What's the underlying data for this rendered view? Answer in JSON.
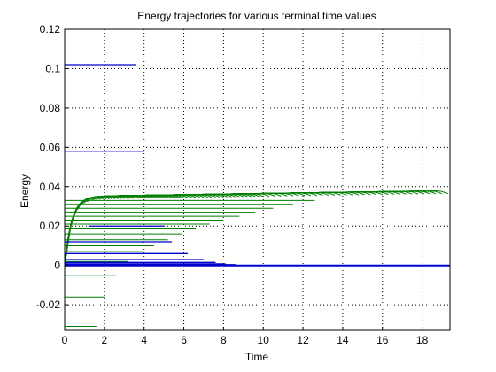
{
  "chart_data": {
    "type": "line",
    "title": "Energy trajectories for various terminal time values",
    "xlabel": "Time",
    "ylabel": "Energy",
    "xlim": [
      0,
      19.4
    ],
    "ylim": [
      -0.033,
      0.12
    ],
    "xticks": [
      0,
      2,
      4,
      6,
      8,
      10,
      12,
      14,
      16,
      18
    ],
    "yticks": [
      -0.02,
      0,
      0.02,
      0.04,
      0.06,
      0.08,
      0.1,
      0.12
    ],
    "ytick_labels": [
      "-0.02",
      "0",
      "0.02",
      "0.04",
      "0.06",
      "0.08",
      "0.1",
      "0.12"
    ],
    "grid": "dotted",
    "legend": "none",
    "colors": {
      "green": "#007f00",
      "blue": "#0000cc"
    },
    "series": [
      {
        "kind": "trajectories",
        "color": "green",
        "terminal_times_T": [
          0.3,
          0.45,
          0.6,
          0.75,
          0.9,
          1.05,
          1.2,
          1.35,
          1.5,
          1.65,
          1.8,
          1.95,
          2.1,
          2.25,
          2.4,
          2.55,
          2.7,
          2.85,
          3.0,
          3.15,
          3.3,
          3.45,
          3.6,
          3.75,
          3.9,
          4.05,
          4.2,
          4.35,
          4.5,
          4.65,
          4.8,
          4.95,
          5.1,
          5.25,
          5.4,
          5.55,
          5.7,
          5.85,
          6.0,
          6.2,
          6.4,
          6.6,
          6.8,
          7.0,
          7.2,
          7.4,
          7.6,
          7.8,
          8.0,
          8.2,
          8.4,
          8.6,
          8.8,
          9.0,
          9.2,
          9.4,
          9.6,
          9.8,
          10.0,
          10.3,
          10.6,
          10.9,
          11.2,
          11.5,
          11.8,
          12.1,
          12.4,
          12.7,
          13.0,
          13.3,
          13.6,
          13.9,
          14.2,
          14.5,
          14.8,
          15.1,
          15.4,
          15.7,
          16.0,
          16.3,
          16.6,
          16.9,
          17.2,
          17.5,
          17.8,
          18.1,
          18.4,
          18.7,
          19.0,
          19.3
        ],
        "rise_time": 1.0,
        "plateau_start": 0.035,
        "plateau_end": 0.038,
        "end_drop": 0.0015
      },
      {
        "kind": "flat_segments",
        "color": "green",
        "segments": [
          {
            "y": -0.031,
            "x0": 0,
            "x1": 1.6
          },
          {
            "y": -0.016,
            "x0": 0,
            "x1": 2.0
          },
          {
            "y": -0.005,
            "x0": 0,
            "x1": 2.6
          },
          {
            "y": 0.002,
            "x0": 0,
            "x1": 3.2
          },
          {
            "y": 0.007,
            "x0": 0,
            "x1": 3.9
          },
          {
            "y": 0.01,
            "x0": 0,
            "x1": 4.5
          },
          {
            "y": 0.013,
            "x0": 0,
            "x1": 5.2
          },
          {
            "y": 0.016,
            "x0": 0,
            "x1": 5.9
          },
          {
            "y": 0.019,
            "x0": 0,
            "x1": 6.6
          },
          {
            "y": 0.021,
            "x0": 0,
            "x1": 7.3
          },
          {
            "y": 0.023,
            "x0": 0,
            "x1": 8.0
          },
          {
            "y": 0.025,
            "x0": 0,
            "x1": 8.8
          },
          {
            "y": 0.027,
            "x0": 0,
            "x1": 9.6
          },
          {
            "y": 0.029,
            "x0": 0,
            "x1": 10.5
          },
          {
            "y": 0.031,
            "x0": 0,
            "x1": 11.5
          },
          {
            "y": 0.033,
            "x0": 0,
            "x1": 12.6
          }
        ]
      },
      {
        "kind": "flat_segments",
        "color": "blue",
        "segments": [
          {
            "y": 0.102,
            "x0": 0,
            "x1": 3.6
          },
          {
            "y": 0.058,
            "x0": 0,
            "x1": 4.0
          },
          {
            "y": 0.02,
            "x0": 1.2,
            "x1": 5.0
          },
          {
            "y": 0.012,
            "x0": 0,
            "x1": 5.4
          },
          {
            "y": 0.006,
            "x0": 0,
            "x1": 6.2
          },
          {
            "y": 0.003,
            "x0": 0,
            "x1": 7.0
          },
          {
            "y": 0.0015,
            "x0": 0,
            "x1": 7.6
          },
          {
            "y": 0.0008,
            "x0": 0,
            "x1": 8.1
          },
          {
            "y": 0.0004,
            "x0": 0,
            "x1": 8.6
          },
          {
            "y": 0.0001,
            "x0": 0,
            "x1": 19.4
          },
          {
            "y": -0.0002,
            "x0": 0,
            "x1": 19.4
          }
        ]
      }
    ]
  }
}
